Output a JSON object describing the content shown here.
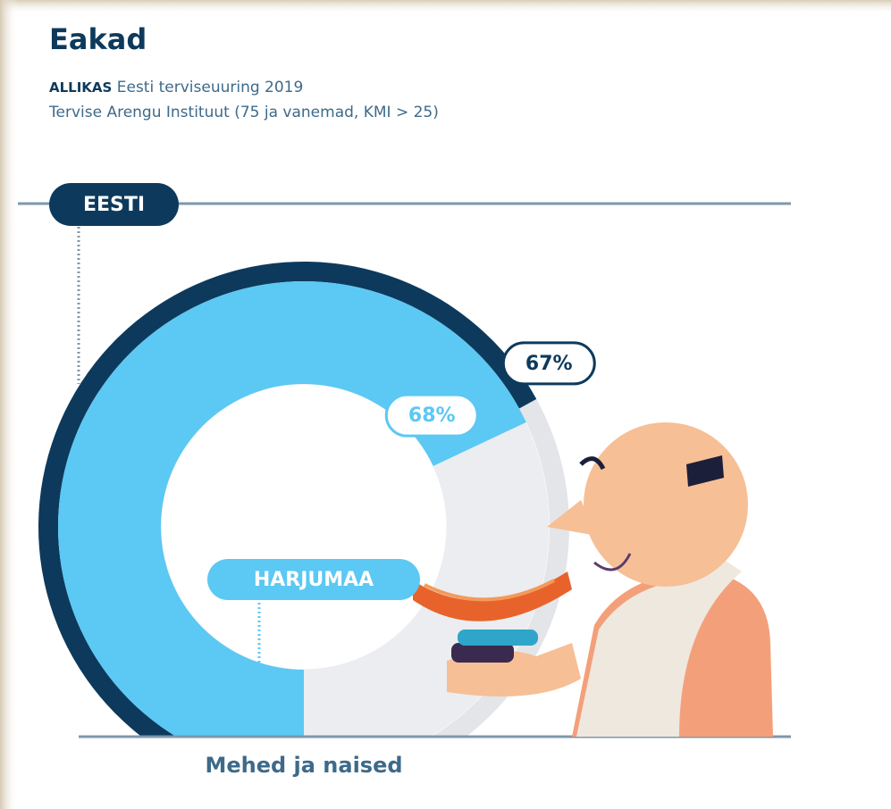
{
  "chart_data": {
    "type": "radial-bar",
    "title": "Eakad",
    "source_label": "ALLIKAS",
    "source": "Eesti terviseuuring 2019",
    "source_detail": "Tervise Arengu Instituut (75 ja vanemad, KMI > 25)",
    "x_label": "Mehed ja naised",
    "ylim": [
      0,
      100
    ],
    "series": [
      {
        "name": "EESTI",
        "color": "#0d3a5c",
        "values": [
          67
        ],
        "value_labels": [
          "67%"
        ]
      },
      {
        "name": "HARJUMAA",
        "color": "#5cc8f4",
        "values": [
          68
        ],
        "value_labels": [
          "68%"
        ]
      }
    ]
  }
}
